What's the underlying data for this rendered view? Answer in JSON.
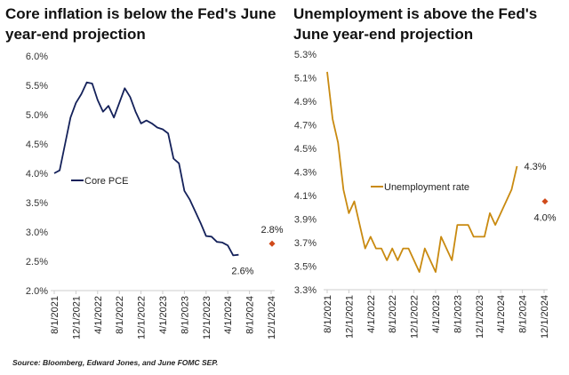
{
  "source": "Source: Bloomberg, Edward Jones, and June FOMC SEP.",
  "chart_data": [
    {
      "type": "line",
      "title": "Core inflation is below the Fed's June year-end projection",
      "xlabel": "",
      "ylabel": "",
      "ylim": [
        2.0,
        6.0
      ],
      "yticks": [
        "2.0%",
        "2.5%",
        "3.0%",
        "3.5%",
        "4.0%",
        "4.5%",
        "5.0%",
        "5.5%",
        "6.0%"
      ],
      "xticks": [
        "8/1/2021",
        "12/1/2021",
        "4/1/2022",
        "8/1/2022",
        "12/1/2022",
        "4/1/2023",
        "8/1/2023",
        "12/1/2023",
        "4/1/2024",
        "8/1/2024",
        "12/1/2024"
      ],
      "legend": "left-middle",
      "series": [
        {
          "name": "Core PCE",
          "color": "#14215a",
          "start": "8/2021",
          "values": [
            4.0,
            4.05,
            4.5,
            4.95,
            5.2,
            5.35,
            5.55,
            5.53,
            5.25,
            5.05,
            5.15,
            4.95,
            5.2,
            5.45,
            5.3,
            5.05,
            4.85,
            4.9,
            4.85,
            4.78,
            4.75,
            4.68,
            4.25,
            4.17,
            3.7,
            3.55,
            3.35,
            3.15,
            2.93,
            2.92,
            2.83,
            2.82,
            2.77,
            2.6,
            2.61
          ]
        }
      ],
      "end_label": "2.6%",
      "projection": {
        "date": "12/2024",
        "value": 2.8,
        "label": "2.8%",
        "color": "#d04a1a"
      }
    },
    {
      "type": "line",
      "title": "Unemployment is above the Fed's June year-end projection",
      "xlabel": "",
      "ylabel": "",
      "ylim": [
        3.3,
        5.3
      ],
      "yticks": [
        "3.3%",
        "3.5%",
        "3.7%",
        "3.9%",
        "4.1%",
        "4.3%",
        "4.5%",
        "4.7%",
        "4.9%",
        "5.1%",
        "5.3%"
      ],
      "xticks": [
        "8/1/2021",
        "12/1/2021",
        "4/1/2022",
        "8/1/2022",
        "12/1/2022",
        "4/1/2023",
        "8/1/2023",
        "12/1/2023",
        "4/1/2024",
        "8/1/2024",
        "12/1/2024"
      ],
      "legend": "center",
      "series": [
        {
          "name": "Unemployment rate",
          "color": "#c98a10",
          "start": "8/2021",
          "values": [
            5.15,
            4.75,
            4.55,
            4.15,
            3.95,
            4.05,
            3.85,
            3.65,
            3.75,
            3.65,
            3.65,
            3.55,
            3.65,
            3.55,
            3.65,
            3.65,
            3.55,
            3.45,
            3.65,
            3.55,
            3.45,
            3.75,
            3.65,
            3.55,
            3.85,
            3.85,
            3.85,
            3.75,
            3.75,
            3.75,
            3.95,
            3.85,
            3.95,
            4.05,
            4.15,
            4.35
          ]
        }
      ],
      "end_label": "4.3%",
      "projection": {
        "date": "12/2024",
        "value": 4.05,
        "label": "4.0%",
        "color": "#d04a1a"
      }
    }
  ]
}
